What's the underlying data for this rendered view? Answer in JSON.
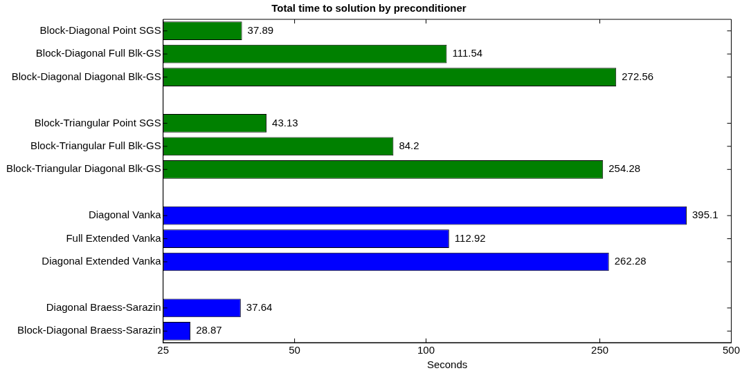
{
  "chart_data": {
    "type": "bar",
    "orientation": "horizontal",
    "title": "Total time to solution by preconditioner",
    "xlabel": "Seconds",
    "categories": [
      "Block-Diagonal Point SGS",
      "Block-Diagonal Full Blk-GS",
      "Block-Diagonal Diagonal Blk-GS",
      null,
      "Block-Triangular Point SGS",
      "Block-Triangular Full Blk-GS",
      "Block-Triangular Diagonal Blk-GS",
      null,
      "Diagonal Vanka",
      "Full Extended Vanka",
      "Diagonal Extended Vanka",
      null,
      "Diagonal Braess-Sarazin",
      "Block-Diagonal Braess-Sarazin"
    ],
    "values": [
      37.89,
      111.54,
      272.56,
      null,
      43.13,
      84.2,
      254.28,
      null,
      395.1,
      112.92,
      262.28,
      null,
      37.64,
      28.87
    ],
    "colors": [
      "#008000",
      "#008000",
      "#008000",
      null,
      "#008000",
      "#008000",
      "#008000",
      null,
      "#0000ff",
      "#0000ff",
      "#0000ff",
      null,
      "#0000ff",
      "#0000ff"
    ],
    "log": "x",
    "xlim": [
      25,
      500
    ],
    "xticks": [
      25,
      50,
      100,
      250,
      500
    ],
    "data_labels": true,
    "grid": false,
    "legend": false
  }
}
